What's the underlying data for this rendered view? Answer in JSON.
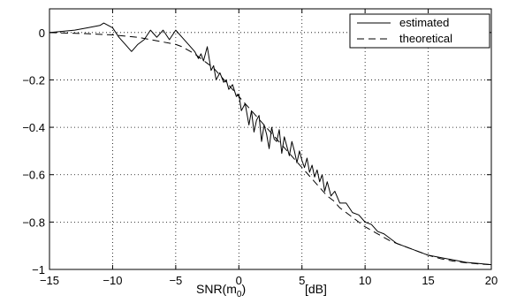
{
  "chart_data": {
    "type": "line",
    "xlabel_main": "SNR(m",
    "xlabel_sub": "0",
    "xlabel_close": ")",
    "xlabel_unit": "[dB]",
    "ylabel": "",
    "xlim": [
      -15,
      20
    ],
    "ylim": [
      -1,
      0.1
    ],
    "xticks": [
      -15,
      -10,
      -5,
      0,
      5,
      10,
      15,
      20
    ],
    "yticks": [
      0,
      -0.2,
      -0.4,
      -0.6,
      -0.8,
      -1
    ],
    "xtick_labels": [
      "−15",
      "−10",
      "−5",
      "0",
      "5",
      "10",
      "15",
      "20"
    ],
    "ytick_labels": [
      "0",
      "−0.2",
      "−0.4",
      "−0.6",
      "−0.8",
      "−1"
    ],
    "grid": true,
    "legend_position": "top-right",
    "series": [
      {
        "name": "estimated",
        "style": "solid",
        "x": [
          -15,
          -13,
          -12,
          -11,
          -10.7,
          -10,
          -9.5,
          -9,
          -8.5,
          -8,
          -7.5,
          -7,
          -6.5,
          -6,
          -5.5,
          -5,
          -4.5,
          -4,
          -3.5,
          -3.2,
          -3,
          -2.8,
          -2.5,
          -2.2,
          -2,
          -1.8,
          -1.5,
          -1.2,
          -1,
          -0.8,
          -0.5,
          -0.2,
          0,
          0.2,
          0.5,
          0.8,
          1,
          1.2,
          1.4,
          1.6,
          1.8,
          2,
          2.2,
          2.4,
          2.6,
          2.8,
          3,
          3.2,
          3.4,
          3.6,
          3.8,
          4,
          4.2,
          4.4,
          4.6,
          4.8,
          5,
          5.2,
          5.4,
          5.6,
          5.8,
          6,
          6.2,
          6.4,
          6.6,
          6.8,
          7,
          7.3,
          7.6,
          8,
          8.5,
          9,
          9.5,
          10,
          10.5,
          11,
          11.5,
          12,
          12.5,
          13,
          14,
          15,
          16,
          17,
          18,
          19,
          20
        ],
        "y": [
          0,
          0.01,
          0.02,
          0.03,
          0.04,
          0.02,
          -0.02,
          -0.05,
          -0.08,
          -0.05,
          -0.03,
          0.01,
          -0.02,
          0.01,
          -0.03,
          0.01,
          -0.02,
          -0.05,
          -0.08,
          -0.11,
          -0.09,
          -0.12,
          -0.06,
          -0.16,
          -0.14,
          -0.2,
          -0.17,
          -0.21,
          -0.2,
          -0.24,
          -0.22,
          -0.27,
          -0.26,
          -0.33,
          -0.3,
          -0.39,
          -0.33,
          -0.42,
          -0.37,
          -0.35,
          -0.46,
          -0.39,
          -0.43,
          -0.49,
          -0.4,
          -0.45,
          -0.46,
          -0.41,
          -0.51,
          -0.44,
          -0.48,
          -0.52,
          -0.46,
          -0.5,
          -0.55,
          -0.5,
          -0.54,
          -0.57,
          -0.53,
          -0.59,
          -0.56,
          -0.61,
          -0.58,
          -0.63,
          -0.6,
          -0.67,
          -0.63,
          -0.69,
          -0.67,
          -0.72,
          -0.72,
          -0.76,
          -0.77,
          -0.8,
          -0.81,
          -0.84,
          -0.85,
          -0.87,
          -0.89,
          -0.9,
          -0.92,
          -0.94,
          -0.95,
          -0.96,
          -0.97,
          -0.975,
          -0.98
        ]
      },
      {
        "name": "theoretical",
        "style": "dashed",
        "x": [
          -15,
          -12,
          -10,
          -9,
          -8,
          -7,
          -6,
          -5,
          -4.5,
          -4,
          -3.5,
          -3,
          -2.5,
          -2,
          -1.5,
          -1,
          -0.5,
          0,
          0.5,
          1,
          1.5,
          2,
          2.5,
          3,
          3.5,
          4,
          4.5,
          5,
          5.5,
          6,
          6.5,
          7,
          7.5,
          8,
          8.5,
          9,
          9.5,
          10,
          11,
          12,
          13,
          14,
          15,
          16,
          17,
          18,
          19,
          20
        ],
        "y": [
          0,
          -0.005,
          -0.01,
          -0.015,
          -0.02,
          -0.03,
          -0.04,
          -0.05,
          -0.06,
          -0.075,
          -0.09,
          -0.11,
          -0.13,
          -0.15,
          -0.18,
          -0.21,
          -0.24,
          -0.27,
          -0.3,
          -0.33,
          -0.36,
          -0.39,
          -0.42,
          -0.45,
          -0.48,
          -0.51,
          -0.54,
          -0.57,
          -0.6,
          -0.63,
          -0.66,
          -0.69,
          -0.71,
          -0.74,
          -0.76,
          -0.78,
          -0.8,
          -0.82,
          -0.85,
          -0.88,
          -0.9,
          -0.92,
          -0.94,
          -0.955,
          -0.965,
          -0.972,
          -0.977,
          -0.98
        ]
      }
    ]
  }
}
